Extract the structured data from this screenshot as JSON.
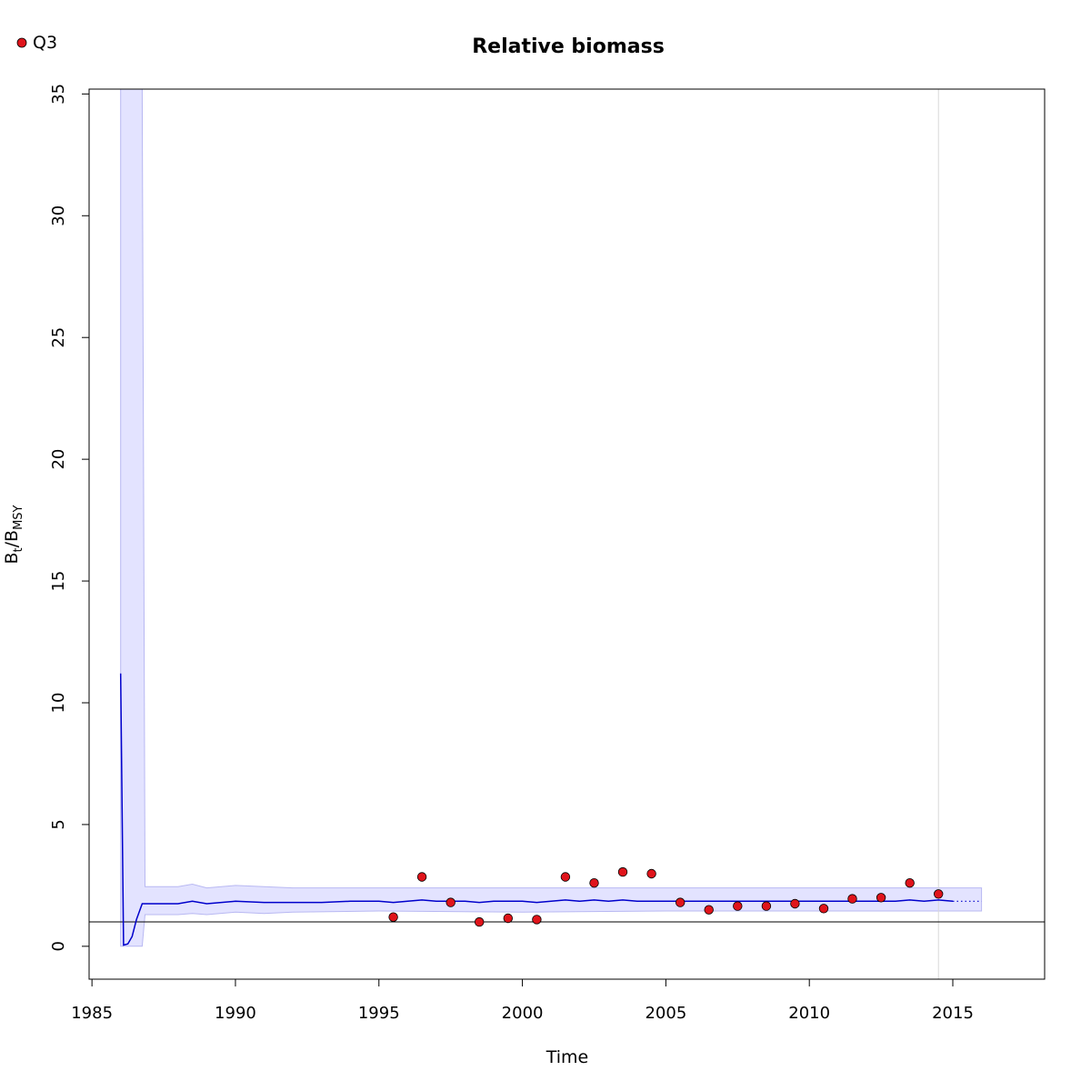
{
  "chart_data": {
    "type": "line",
    "title": "Relative biomass",
    "xlabel": "Time",
    "ylabel": {
      "main": "B",
      "sub1": "t",
      "slash": "/B",
      "sub2": "MSY"
    },
    "xlim": [
      1984.9,
      2018.2
    ],
    "ylim": [
      -1.35,
      35.2
    ],
    "x_ticks": [
      1985,
      1990,
      1995,
      2000,
      2005,
      2010,
      2015
    ],
    "y_ticks": [
      0,
      5,
      10,
      15,
      20,
      25,
      30,
      35
    ],
    "legend": {
      "position": "top-left",
      "entries": [
        {
          "name": "Q3",
          "color": "#e0141b",
          "marker": "circle"
        }
      ]
    },
    "reference_line_y": 1,
    "vertical_line_x": 2014.5,
    "colors": {
      "line": "#0000cc",
      "band_fill": "#e3e3ff",
      "band_edge": "#b8b8f2",
      "points": "#e0141b",
      "vline": "#d8d8d8"
    },
    "biomass_series": {
      "x": [
        1986.0,
        1986.1,
        1986.25,
        1986.4,
        1986.55,
        1986.75,
        1988.0,
        1988.5,
        1989.0,
        1990.0,
        1991.0,
        1992.0,
        1993.0,
        1994.0,
        1995.0,
        1995.5,
        1996.0,
        1996.5,
        1997.0,
        1997.5,
        1998.0,
        1998.5,
        1999.0,
        1999.5,
        2000.0,
        2000.5,
        2001.0,
        2001.5,
        2002.0,
        2002.5,
        2003.0,
        2003.5,
        2004.0,
        2004.5,
        2005.0,
        2006.0,
        2007.0,
        2008.0,
        2009.0,
        2010.0,
        2011.0,
        2012.0,
        2013.0,
        2013.5,
        2014.0,
        2014.5,
        2015.0
      ],
      "y": [
        11.2,
        0.05,
        0.1,
        0.4,
        1.1,
        1.75,
        1.75,
        1.85,
        1.75,
        1.85,
        1.8,
        1.8,
        1.8,
        1.85,
        1.85,
        1.8,
        1.85,
        1.9,
        1.85,
        1.85,
        1.85,
        1.8,
        1.85,
        1.85,
        1.85,
        1.8,
        1.85,
        1.9,
        1.85,
        1.9,
        1.85,
        1.9,
        1.85,
        1.85,
        1.85,
        1.85,
        1.85,
        1.85,
        1.85,
        1.85,
        1.85,
        1.85,
        1.85,
        1.9,
        1.85,
        1.9,
        1.85
      ]
    },
    "biomass_projection": {
      "x": [
        2015.0,
        2016.0
      ],
      "y": [
        1.85,
        1.85
      ]
    },
    "confidence_band": {
      "x": [
        1986.0,
        1986.75,
        1986.85,
        1988.0,
        1988.5,
        1989.0,
        1990.0,
        1991.0,
        1992.0,
        1995.0,
        2000.0,
        2005.0,
        2010.0,
        2014.5,
        2016.0
      ],
      "lower": [
        0.0,
        0.0,
        1.3,
        1.3,
        1.35,
        1.3,
        1.4,
        1.35,
        1.4,
        1.45,
        1.4,
        1.45,
        1.45,
        1.45,
        1.45
      ],
      "upper": [
        35.2,
        35.2,
        2.45,
        2.45,
        2.55,
        2.4,
        2.5,
        2.45,
        2.4,
        2.4,
        2.4,
        2.4,
        2.4,
        2.4,
        2.4
      ]
    },
    "observations": {
      "name": "Q3",
      "x": [
        1995.5,
        1996.5,
        1997.5,
        1998.5,
        1999.5,
        2000.5,
        2001.5,
        2002.5,
        2003.5,
        2004.5,
        2005.5,
        2006.5,
        2007.5,
        2008.5,
        2009.5,
        2010.5,
        2011.5,
        2012.5,
        2013.5,
        2014.5
      ],
      "y": [
        1.2,
        2.85,
        1.8,
        1.0,
        1.15,
        1.1,
        2.85,
        2.6,
        3.05,
        2.98,
        1.8,
        1.5,
        1.65,
        1.65,
        1.75,
        1.55,
        1.95,
        2.0,
        2.6,
        2.15
      ]
    }
  }
}
